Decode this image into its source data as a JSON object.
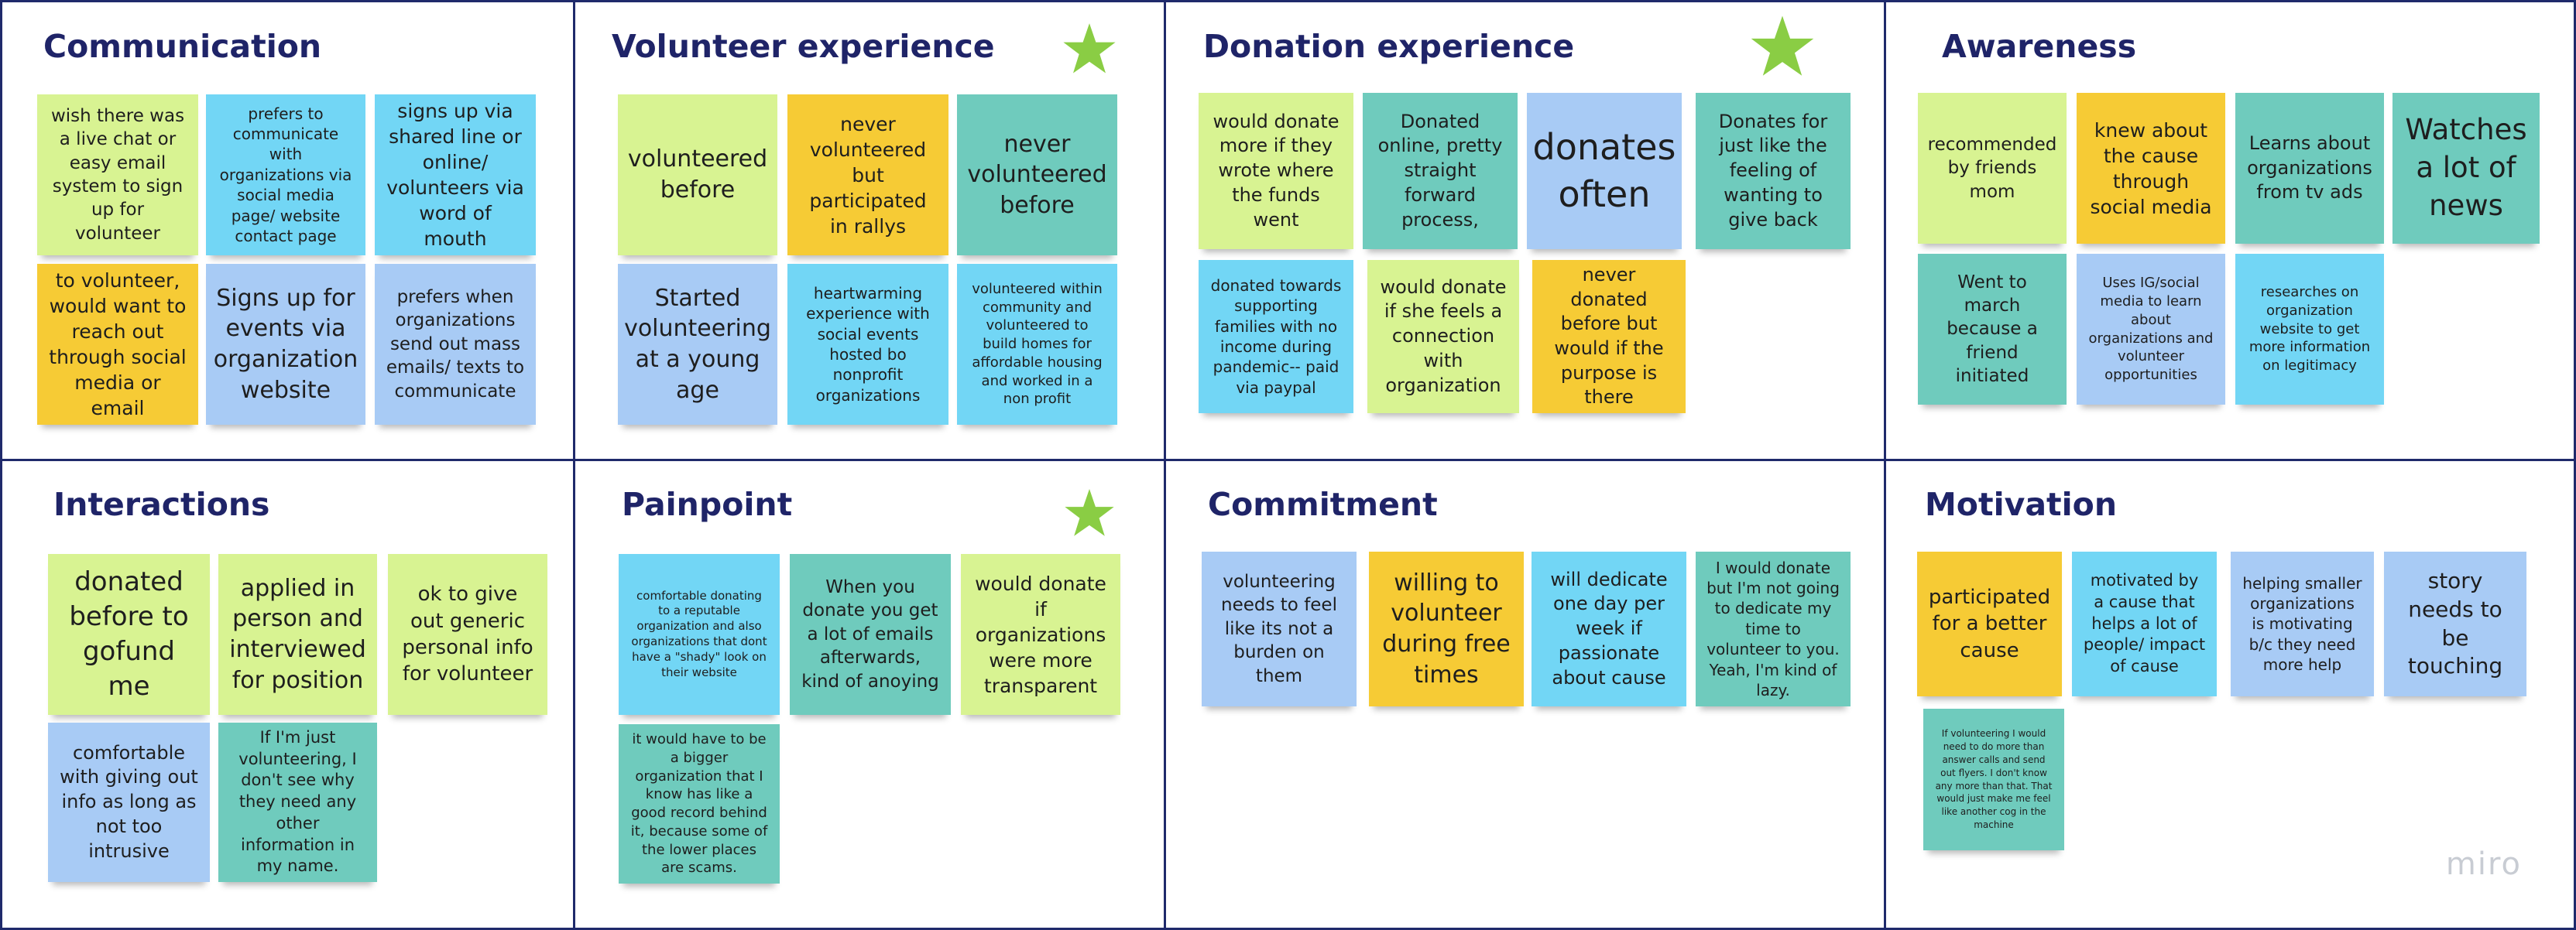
{
  "colors": {
    "frame_border": "#1f2a6b",
    "title": "#1f2468",
    "lime": "#d8f392",
    "blue": "#72d6f5",
    "yellow": "#f6cb35",
    "periwinkle": "#a8cbf5",
    "teal": "#6fcbbd",
    "star": "#8acd44"
  },
  "frames": [
    {
      "title": "Communication",
      "starred": false
    },
    {
      "title": "Volunteer experience",
      "starred": true
    },
    {
      "title": "Donation experience",
      "starred": true
    },
    {
      "title": "Awareness",
      "starred": false
    },
    {
      "title": "Interactions",
      "starred": false
    },
    {
      "title": "Painpoint",
      "starred": true
    },
    {
      "title": "Commitment",
      "starred": false
    },
    {
      "title": "Motivation",
      "starred": false
    }
  ],
  "notes": {
    "communication": [
      {
        "text": "wish there was a live chat or easy email system to sign up for volunteer",
        "color": "lime"
      },
      {
        "text": "prefers to communicate with organizations via social media page/ website contact page",
        "color": "blue"
      },
      {
        "text": "signs up via shared line or online/ volunteers via word of mouth",
        "color": "blue"
      },
      {
        "text": "to volunteer, would want to reach out through social media or email",
        "color": "yellow"
      },
      {
        "text": "Signs up for events via organization website",
        "color": "periwinkle"
      },
      {
        "text": "prefers when organizations send out mass emails/ texts to communicate",
        "color": "periwinkle"
      }
    ],
    "volunteer": [
      {
        "text": "volunteered before",
        "color": "lime"
      },
      {
        "text": "never volunteered but participated in rallys",
        "color": "yellow"
      },
      {
        "text": "never volunteered before",
        "color": "teal"
      },
      {
        "text": "Started volunteering at a young age",
        "color": "periwinkle"
      },
      {
        "text": "heartwarming experience with social events hosted bo nonprofit organizations",
        "color": "blue"
      },
      {
        "text": "volunteered within community and volunteered to build homes for affordable housing and worked in a non profit",
        "color": "blue"
      }
    ],
    "donation": [
      {
        "text": "would donate more if they wrote where the funds went",
        "color": "lime"
      },
      {
        "text": "Donated online, pretty straight forward process,",
        "color": "teal"
      },
      {
        "text": "donates often",
        "color": "periwinkle"
      },
      {
        "text": "Donates for just like the feeling of wanting to give back",
        "color": "teal"
      },
      {
        "text": "donated towards supporting families with no income during pandemic-- paid via paypal",
        "color": "blue"
      },
      {
        "text": "would donate if she feels a connection with organization",
        "color": "lime"
      },
      {
        "text": "never donated before but would if the purpose is there",
        "color": "yellow"
      }
    ],
    "awareness": [
      {
        "text": "recommended by friends mom",
        "color": "lime"
      },
      {
        "text": "knew about the cause through social media",
        "color": "yellow"
      },
      {
        "text": "Learns about organizations from tv ads",
        "color": "teal"
      },
      {
        "text": "Watches a lot of news",
        "color": "teal"
      },
      {
        "text": "Went to march because a friend initiated",
        "color": "teal"
      },
      {
        "text": "Uses IG/social media to learn about organizations and volunteer opportunities",
        "color": "periwinkle"
      },
      {
        "text": "researches on organization website to get more information on legitimacy",
        "color": "blue"
      }
    ],
    "interactions": [
      {
        "text": "donated before to gofund me",
        "color": "lime"
      },
      {
        "text": "applied in person and interviewed for position",
        "color": "lime"
      },
      {
        "text": "ok to give out generic personal info for volunteer",
        "color": "lime"
      },
      {
        "text": "comfortable with giving out info as long as not too intrusive",
        "color": "periwinkle"
      },
      {
        "text": "If I'm just volunteering, I don't see why they need any other information in my name.",
        "color": "teal"
      }
    ],
    "painpoint": [
      {
        "text": "comfortable donating to a reputable organization and also organizations that dont have a \"shady\" look on their website",
        "color": "blue"
      },
      {
        "text": "When you donate you get a lot of emails afterwards, kind of anoying",
        "color": "teal"
      },
      {
        "text": "would donate if organizations were more transparent",
        "color": "lime"
      },
      {
        "text": "it would have to be a bigger organization that I know has like a good record behind it, because some of the lower places are scams.",
        "color": "teal"
      }
    ],
    "commitment": [
      {
        "text": "volunteering needs to feel like its not a burden on them",
        "color": "periwinkle"
      },
      {
        "text": "willing to volunteer during free times",
        "color": "yellow"
      },
      {
        "text": "will dedicate one day per week if passionate about cause",
        "color": "blue"
      },
      {
        "text": "I would donate but I'm not going to dedicate my time to volunteer to you. Yeah, I'm kind of lazy.",
        "color": "teal"
      }
    ],
    "motivation": [
      {
        "text": "participated for a better cause",
        "color": "yellow"
      },
      {
        "text": "motivated by a cause that helps a lot of people/ impact of cause",
        "color": "blue"
      },
      {
        "text": "helping smaller organizations is motivating b/c they need more help",
        "color": "periwinkle"
      },
      {
        "text": "story needs to be touching",
        "color": "periwinkle"
      },
      {
        "text": "If volunteering I would need to do more than answer calls and send out flyers. I don't know any more than that. That would just make me feel like another cog in the machine",
        "color": "teal"
      }
    ]
  },
  "watermark": "miro"
}
